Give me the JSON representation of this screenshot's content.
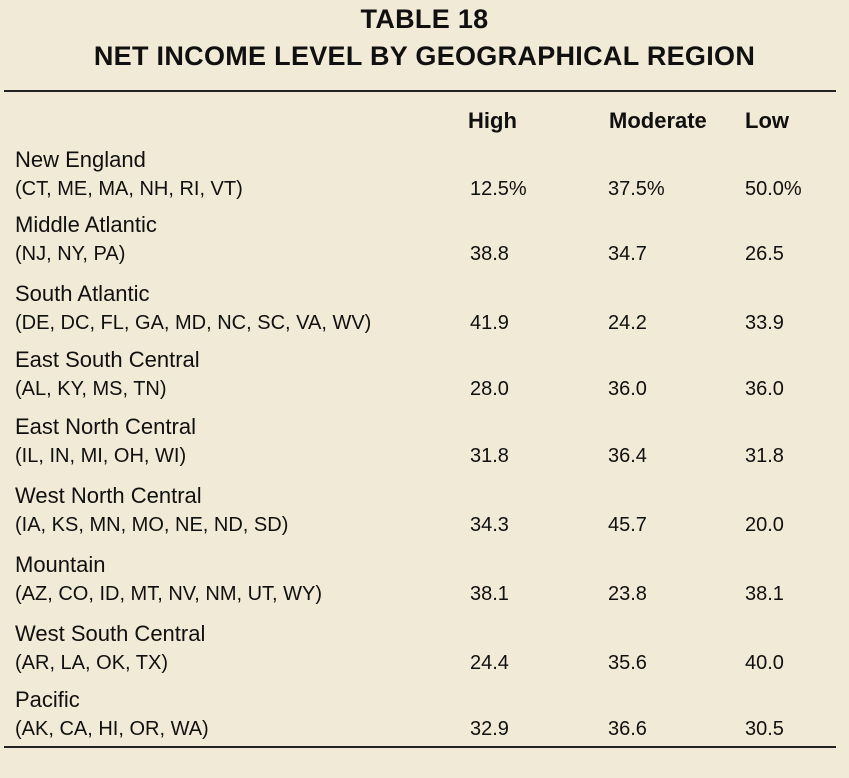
{
  "table": {
    "title": "TABLE 18",
    "subtitle": "NET INCOME LEVEL BY GEOGRAPHICAL REGION",
    "columns": [
      "High",
      "Moderate",
      "Low"
    ],
    "rows": [
      {
        "region": "New England",
        "states": "(CT, ME, MA, NH, RI, VT)",
        "high": "12.5%",
        "moderate": "37.5%",
        "low": "50.0%"
      },
      {
        "region": "Middle Atlantic",
        "states": "(NJ, NY, PA)",
        "high": "38.8",
        "moderate": "34.7",
        "low": "26.5"
      },
      {
        "region": "South Atlantic",
        "states": "(DE, DC, FL, GA, MD, NC, SC, VA, WV)",
        "high": "41.9",
        "moderate": "24.2",
        "low": "33.9"
      },
      {
        "region": "East South Central",
        "states": "(AL, KY, MS, TN)",
        "high": "28.0",
        "moderate": "36.0",
        "low": "36.0"
      },
      {
        "region": "East North Central",
        "states": "(IL, IN, MI, OH, WI)",
        "high": "31.8",
        "moderate": "36.4",
        "low": "31.8"
      },
      {
        "region": "West North Central",
        "states": "(IA, KS, MN, MO, NE, ND, SD)",
        "high": "34.3",
        "moderate": "45.7",
        "low": "20.0"
      },
      {
        "region": "Mountain",
        "states": "(AZ, CO, ID, MT, NV, NM, UT, WY)",
        "high": "38.1",
        "moderate": "23.8",
        "low": "38.1"
      },
      {
        "region": "West South Central",
        "states": "(AR, LA, OK, TX)",
        "high": "24.4",
        "moderate": "35.6",
        "low": "40.0"
      },
      {
        "region": "Pacific",
        "states": "(AK, CA, HI, OR, WA)",
        "high": "32.9",
        "moderate": "36.6",
        "low": "30.5"
      }
    ]
  }
}
